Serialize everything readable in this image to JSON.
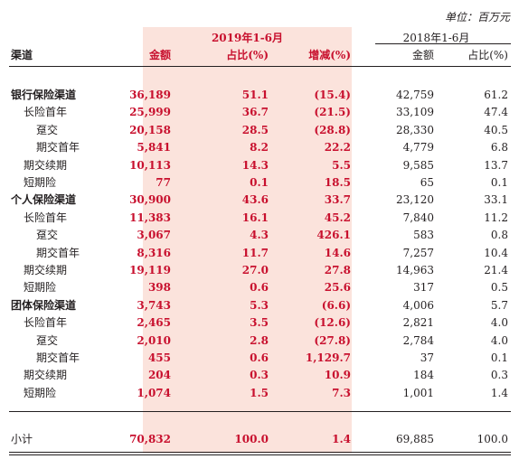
{
  "unit_label": "单位：百万元",
  "header": {
    "group_2019": "2019年1-6月",
    "group_2018": "2018年1-6月",
    "channel": "渠道",
    "amount_2019": "金额",
    "share_2019": "占比(%)",
    "change": "增减(%)",
    "amount_2018": "金额",
    "share_2018": "占比(%)"
  },
  "rows": [
    {
      "label": "银行保险渠道",
      "level": 0,
      "bold": true,
      "v": [
        "36,189",
        "51.1",
        "(15.4)",
        "42,759",
        "61.2"
      ]
    },
    {
      "label": "长险首年",
      "level": 1,
      "bold": false,
      "v": [
        "25,999",
        "36.7",
        "(21.5)",
        "33,109",
        "47.4"
      ]
    },
    {
      "label": "趸交",
      "level": 2,
      "bold": false,
      "v": [
        "20,158",
        "28.5",
        "(28.8)",
        "28,330",
        "40.5"
      ]
    },
    {
      "label": "期交首年",
      "level": 2,
      "bold": false,
      "v": [
        "5,841",
        "8.2",
        "22.2",
        "4,779",
        "6.8"
      ]
    },
    {
      "label": "期交续期",
      "level": 1,
      "bold": false,
      "v": [
        "10,113",
        "14.3",
        "5.5",
        "9,585",
        "13.7"
      ]
    },
    {
      "label": "短期险",
      "level": 1,
      "bold": false,
      "v": [
        "77",
        "0.1",
        "18.5",
        "65",
        "0.1"
      ]
    },
    {
      "label": "个人保险渠道",
      "level": 0,
      "bold": true,
      "v": [
        "30,900",
        "43.6",
        "33.7",
        "23,120",
        "33.1"
      ]
    },
    {
      "label": "长险首年",
      "level": 1,
      "bold": false,
      "v": [
        "11,383",
        "16.1",
        "45.2",
        "7,840",
        "11.2"
      ]
    },
    {
      "label": "趸交",
      "level": 2,
      "bold": false,
      "v": [
        "3,067",
        "4.3",
        "426.1",
        "583",
        "0.8"
      ]
    },
    {
      "label": "期交首年",
      "level": 2,
      "bold": false,
      "v": [
        "8,316",
        "11.7",
        "14.6",
        "7,257",
        "10.4"
      ]
    },
    {
      "label": "期交续期",
      "level": 1,
      "bold": false,
      "v": [
        "19,119",
        "27.0",
        "27.8",
        "14,963",
        "21.4"
      ]
    },
    {
      "label": "短期险",
      "level": 1,
      "bold": false,
      "v": [
        "398",
        "0.6",
        "25.6",
        "317",
        "0.5"
      ]
    },
    {
      "label": "团体保险渠道",
      "level": 0,
      "bold": true,
      "v": [
        "3,743",
        "5.3",
        "(6.6)",
        "4,006",
        "5.7"
      ]
    },
    {
      "label": "长险首年",
      "level": 1,
      "bold": false,
      "v": [
        "2,465",
        "3.5",
        "(12.6)",
        "2,821",
        "4.0"
      ]
    },
    {
      "label": "趸交",
      "level": 2,
      "bold": false,
      "v": [
        "2,010",
        "2.8",
        "(27.8)",
        "2,784",
        "4.0"
      ]
    },
    {
      "label": "期交首年",
      "level": 2,
      "bold": false,
      "v": [
        "455",
        "0.6",
        "1,129.7",
        "37",
        "0.1"
      ]
    },
    {
      "label": "期交续期",
      "level": 1,
      "bold": false,
      "v": [
        "204",
        "0.3",
        "10.9",
        "184",
        "0.3"
      ]
    },
    {
      "label": "短期险",
      "level": 1,
      "bold": false,
      "v": [
        "1,074",
        "1.5",
        "7.3",
        "1,001",
        "1.4"
      ]
    }
  ],
  "total": {
    "label": "小计",
    "v": [
      "70,832",
      "100.0",
      "1.4",
      "69,885",
      "100.0"
    ]
  },
  "colors": {
    "accent_red": "#c8102e",
    "highlight": "#fbe3dc",
    "text": "#231f20"
  }
}
